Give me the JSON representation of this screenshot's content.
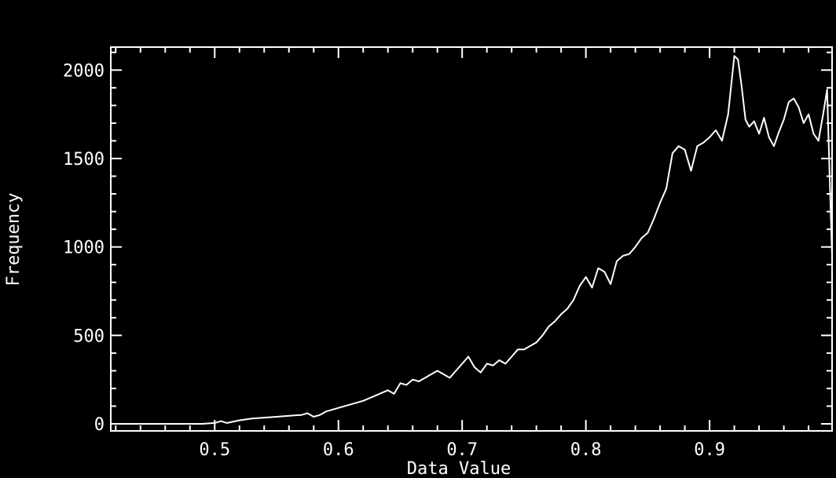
{
  "chart_data": {
    "type": "line",
    "xlabel": "Data Value",
    "ylabel": "Frequency",
    "xlim": [
      0.416,
      0.999
    ],
    "ylim": [
      -40,
      2130
    ],
    "x_ticks": [
      0.5,
      0.6,
      0.7,
      0.8,
      0.9
    ],
    "x_tick_labels": [
      "0.5",
      "0.6",
      "0.7",
      "0.8",
      "0.9"
    ],
    "y_ticks": [
      0,
      500,
      1000,
      1500,
      2000
    ],
    "y_tick_labels": [
      "0",
      "500",
      "1000",
      "1500",
      "2000"
    ],
    "grid": false,
    "colors": {
      "background": "#000000",
      "line": "#ffffff",
      "axis": "#ffffff"
    },
    "series": [
      {
        "x": [
          0.416,
          0.44,
          0.46,
          0.48,
          0.49,
          0.5,
          0.505,
          0.51,
          0.52,
          0.53,
          0.54,
          0.55,
          0.56,
          0.57,
          0.575,
          0.58,
          0.585,
          0.59,
          0.6,
          0.61,
          0.62,
          0.63,
          0.64,
          0.645,
          0.65,
          0.655,
          0.66,
          0.665,
          0.67,
          0.675,
          0.68,
          0.685,
          0.69,
          0.695,
          0.7,
          0.705,
          0.71,
          0.715,
          0.72,
          0.725,
          0.73,
          0.735,
          0.74,
          0.745,
          0.75,
          0.755,
          0.76,
          0.765,
          0.77,
          0.775,
          0.78,
          0.785,
          0.79,
          0.795,
          0.8,
          0.805,
          0.81,
          0.815,
          0.82,
          0.825,
          0.83,
          0.835,
          0.84,
          0.845,
          0.85,
          0.855,
          0.86,
          0.865,
          0.87,
          0.875,
          0.88,
          0.885,
          0.89,
          0.895,
          0.9,
          0.905,
          0.91,
          0.915,
          0.92,
          0.923,
          0.926,
          0.929,
          0.932,
          0.936,
          0.94,
          0.944,
          0.948,
          0.952,
          0.956,
          0.96,
          0.964,
          0.968,
          0.972,
          0.976,
          0.98,
          0.984,
          0.988,
          0.992,
          0.995,
          0.997,
          0.999
        ],
        "y": [
          0,
          0,
          0,
          0,
          0,
          5,
          15,
          5,
          20,
          30,
          35,
          40,
          45,
          50,
          60,
          40,
          50,
          70,
          90,
          110,
          130,
          160,
          190,
          170,
          230,
          220,
          250,
          240,
          260,
          280,
          300,
          280,
          260,
          300,
          340,
          380,
          320,
          290,
          340,
          330,
          360,
          340,
          380,
          420,
          420,
          440,
          460,
          500,
          550,
          580,
          620,
          650,
          700,
          780,
          830,
          770,
          880,
          860,
          790,
          920,
          950,
          960,
          1000,
          1050,
          1080,
          1160,
          1250,
          1330,
          1530,
          1570,
          1550,
          1430,
          1570,
          1590,
          1620,
          1660,
          1600,
          1750,
          2080,
          2060,
          1900,
          1720,
          1680,
          1710,
          1640,
          1730,
          1620,
          1570,
          1650,
          1720,
          1820,
          1840,
          1790,
          1700,
          1750,
          1640,
          1600,
          1760,
          1890,
          1400,
          950
        ]
      }
    ]
  }
}
